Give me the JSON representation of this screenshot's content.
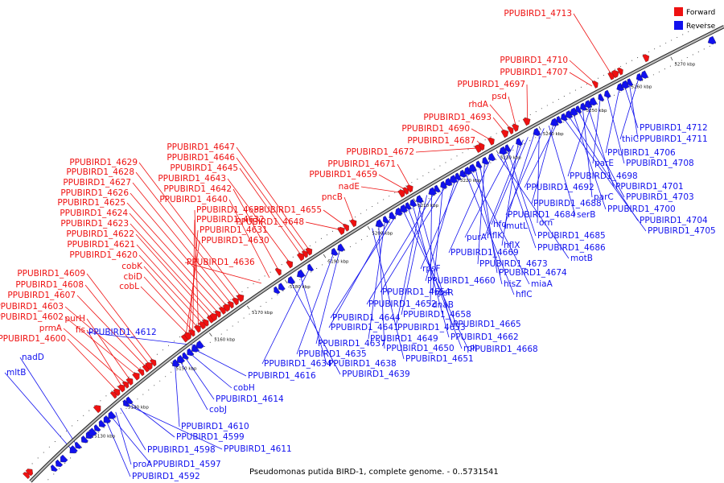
{
  "title": "Pseudomonas putida BIRD-1, complete genome. - 0..5731541",
  "legend": [
    {
      "label": "Forward",
      "color": "#ee1111"
    },
    {
      "label": "Reverse",
      "color": "#1111ee"
    }
  ],
  "colors": {
    "forward": "#ee1111",
    "reverse": "#1111ee",
    "backbone": "#777777"
  },
  "ticks": [
    "5130 kbp",
    "5140 kbp",
    "5150 kbp",
    "5160 kbp",
    "5170 kbp",
    "5180 kbp",
    "5190 kbp",
    "5200 kbp",
    "5210 kbp",
    "5220 kbp",
    "5230 kbp",
    "5240 kbp",
    "5250 kbp",
    "5260 kbp",
    "5270 kbp"
  ],
  "forward_labels": [
    "PPUBIRD1_4713",
    "PPUBIRD1_4710",
    "PPUBIRD1_4707",
    "PPUBIRD1_4697",
    "psd",
    "rhdA",
    "PPUBIRD1_4693",
    "PPUBIRD1_4690",
    "PPUBIRD1_4687",
    "PPUBIRD1_4672",
    "PPUBIRD1_4671",
    "PPUBIRD1_4659",
    "nadE",
    "pncB",
    "PPUBIRD1_4655",
    "PPUBIRD1_4648",
    "PPUBIRD1_4647",
    "PPUBIRD1_4646",
    "PPUBIRD1_4645",
    "PPUBIRD1_4643",
    "PPUBIRD1_4642",
    "PPUBIRD1_4640",
    "PPUBIRD1_4629",
    "PPUBIRD1_4628",
    "PPUBIRD1_4627",
    "PPUBIRD1_4626",
    "PPUBIRD1_4625",
    "PPUBIRD1_4624",
    "PPUBIRD1_4623",
    "PPUBIRD1_4622",
    "PPUBIRD1_4621",
    "PPUBIRD1_4620",
    "PPUBIRD1_4633",
    "PPUBIRD1_4632",
    "PPUBIRD1_4631",
    "PPUBIRD1_4630",
    "PPUBIRD1_4636",
    "cobK",
    "cbiD",
    "cobL",
    "PPUBIRD1_4609",
    "PPUBIRD1_4608",
    "PPUBIRD1_4607",
    "PPUBIRD1_4603",
    "PPUBIRD1_4602",
    "purH",
    "prmA",
    "fis",
    "PPUBIRD1_4600"
  ],
  "reverse_labels": [
    "PPUBIRD1_4712",
    "thiC",
    "PPUBIRD1_4711",
    "PPUBIRD1_4706",
    "PPUBIRD1_4708",
    "parE",
    "PPUBIRD1_4698",
    "PPUBIRD1_4701",
    "parC",
    "PPUBIRD1_4703",
    "PPUBIRD1_4700",
    "PPUBIRD1_4704",
    "PPUBIRD1_4705",
    "PPUBIRD1_4692",
    "PPUBIRD1_4688",
    "serB",
    "PPUBIRD1_4684",
    "orn",
    "mutL",
    "hfq",
    "hflK",
    "hflX",
    "purA",
    "PPUBIRD1_4685",
    "PPUBIRD1_4686",
    "motB",
    "PPUBIRD1_4669",
    "PPUBIRD1_4673",
    "PPUBIRD1_4674",
    "hisZ",
    "miaA",
    "hflC",
    "rpsF",
    "PPUBIRD1_4660",
    "PPUBIRD1_4654",
    "rpsR",
    "PPUBIRD1_4652",
    "dnaB",
    "PPUBIRD1_4658",
    "PPUBIRD1_4653",
    "PPUBIRD1_4665",
    "PPUBIRD1_4662",
    "rplI",
    "PPUBIRD1_4668",
    "PPUBIRD1_4644",
    "PPUBIRD1_4641",
    "PPUBIRD1_4649",
    "PPUBIRD1_4650",
    "PPUBIRD1_4651",
    "PPUBIRD1_4637",
    "PPUBIRD1_4635",
    "PPUBIRD1_4634",
    "PPUBIRD1_4638",
    "PPUBIRD1_4639",
    "PPUBIRD1_4612",
    "PPUBIRD1_4616",
    "cobH",
    "PPUBIRD1_4614",
    "cobJ",
    "nadD",
    "mltB",
    "PPUBIRD1_4610",
    "PPUBIRD1_4599",
    "PPUBIRD1_4611",
    "PPUBIRD1_4598",
    "proA",
    "PPUBIRD1_4597",
    "PPUBIRD1_4592"
  ]
}
